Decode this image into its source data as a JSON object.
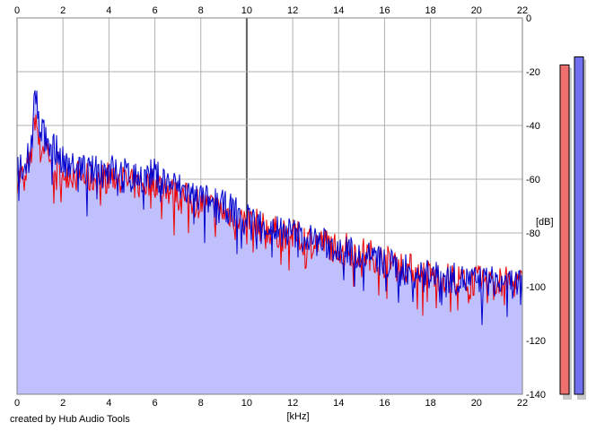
{
  "credit": "created by Hub Audio Tools",
  "chart_data": {
    "type": "area",
    "title": "",
    "xlabel": "[kHz]",
    "ylabel": "[dB]",
    "xlim": [
      0,
      22
    ],
    "ylim": [
      -140,
      0
    ],
    "x_ticks": [
      "0",
      "2",
      "4",
      "6",
      "8",
      "10",
      "12",
      "14",
      "16",
      "18",
      "20",
      "22"
    ],
    "y_ticks": [
      "0",
      "-20",
      "-40",
      "-60",
      "-80",
      "-100",
      "-120",
      "-140"
    ],
    "grid": true,
    "series": [
      {
        "color": "#ee0000",
        "x": [
          0,
          0.2,
          0.4,
          0.6,
          0.8,
          1.0,
          1.2,
          1.5,
          2.0,
          2.5,
          3.0,
          3.5,
          4.0,
          4.5,
          5.0,
          5.5,
          6.0,
          6.5,
          7.0,
          8.0,
          9.0,
          10.0,
          11.0,
          12.0,
          13.0,
          14.0,
          15.0,
          16.0,
          17.0,
          18.0,
          19.0,
          20.0,
          21.0,
          22.0
        ],
        "values": [
          -60,
          -59,
          -58,
          -52,
          -35,
          -50,
          -47,
          -52,
          -57,
          -58,
          -60,
          -60,
          -59,
          -60,
          -62,
          -62,
          -61,
          -64,
          -66,
          -69,
          -72,
          -75,
          -79,
          -81,
          -83,
          -85,
          -87,
          -90,
          -93,
          -96,
          -97,
          -98,
          -98,
          -99
        ]
      },
      {
        "color": "#0000cc",
        "x": [
          0,
          0.2,
          0.4,
          0.6,
          0.8,
          1.0,
          1.2,
          1.5,
          2.0,
          2.5,
          3.0,
          3.5,
          4.0,
          4.5,
          5.0,
          5.5,
          6.0,
          6.5,
          7.0,
          8.0,
          9.0,
          10.0,
          11.0,
          12.0,
          13.0,
          14.0,
          15.0,
          16.0,
          17.0,
          18.0,
          19.0,
          20.0,
          21.0,
          22.0
        ],
        "values": [
          -56,
          -55,
          -54,
          -47,
          -26,
          -44,
          -42,
          -47,
          -53,
          -54,
          -57,
          -57,
          -56,
          -57,
          -59,
          -59,
          -58,
          -61,
          -63,
          -67,
          -70,
          -74,
          -78,
          -80,
          -83,
          -86,
          -88,
          -91,
          -94,
          -96,
          -97,
          -98,
          -98,
          -99
        ]
      }
    ],
    "level_meters": [
      {
        "color": "#f07070",
        "value": -17.5
      },
      {
        "color": "#7070f0",
        "value": -14.5
      }
    ]
  }
}
